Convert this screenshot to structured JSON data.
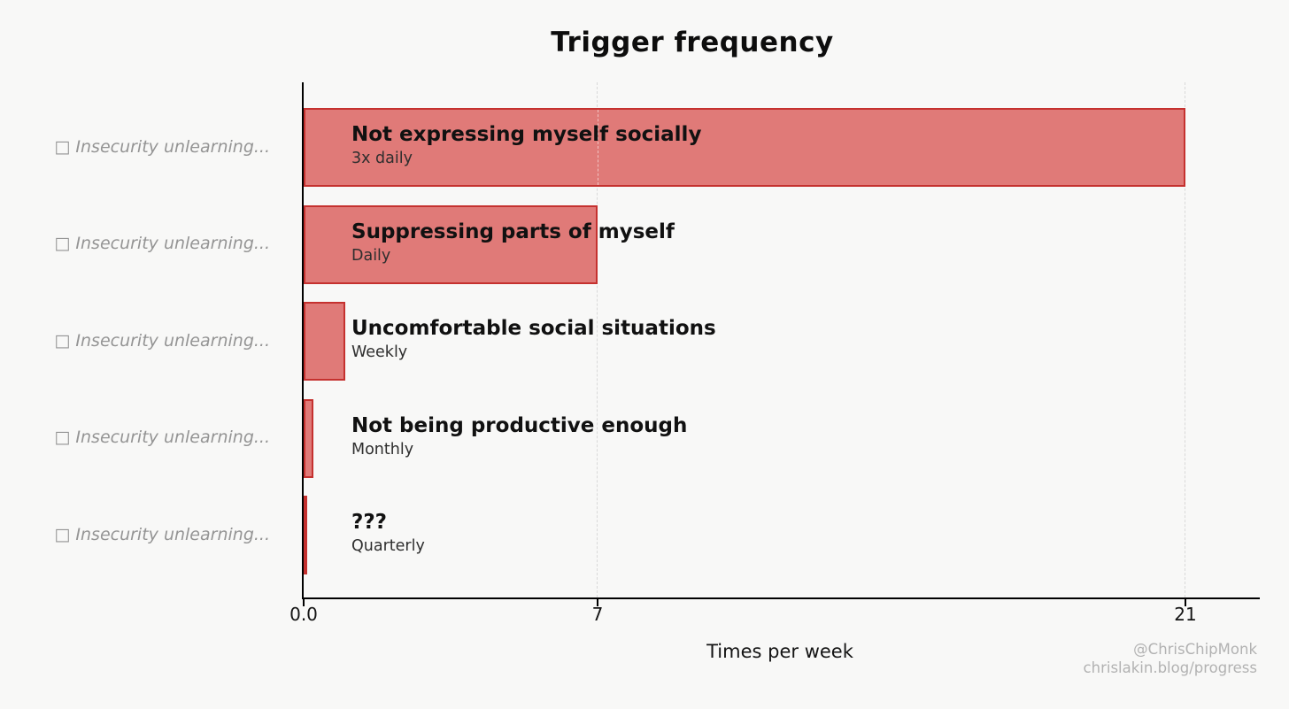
{
  "title": "Trigger frequency",
  "watermark": {
    "line1": "@ChrisChipMonk",
    "line2": "chrislakin.blog/progress"
  },
  "chart_data": {
    "type": "bar",
    "orientation": "horizontal",
    "title": "Trigger frequency",
    "xlabel": "Times per week",
    "xlim": [
      0,
      22.8
    ],
    "xticks": [
      {
        "value": 0,
        "label": "0.0"
      },
      {
        "value": 7,
        "label": "7"
      },
      {
        "value": 21,
        "label": "21"
      }
    ],
    "gridlines_at": [
      7,
      21
    ],
    "grid_style": "vertical dashed",
    "legend": "none",
    "y_axis_labels": [
      "□ Insecurity unlearning...",
      "□ Insecurity unlearning...",
      "□ Insecurity unlearning...",
      "□ Insecurity unlearning...",
      "□ Insecurity unlearning..."
    ],
    "bars": [
      {
        "label": "Not expressing myself socially",
        "frequency": "3x daily",
        "value": 21
      },
      {
        "label": "Suppressing parts of myself",
        "frequency": "Daily",
        "value": 7
      },
      {
        "label": "Uncomfortable social situations",
        "frequency": "Weekly",
        "value": 1
      },
      {
        "label": "Not being productive enough",
        "frequency": "Monthly",
        "value": 0.23
      },
      {
        "label": "???",
        "frequency": "Quarterly",
        "value": 0.08
      }
    ],
    "colors": {
      "background": "#f8f8f7",
      "bar_fill": "#e07a78",
      "bar_edge": "#c5312f",
      "gridline": "#d9d9d9",
      "y_label": "#949494",
      "axis": "#000000",
      "watermark": "#b2b2b2"
    }
  }
}
